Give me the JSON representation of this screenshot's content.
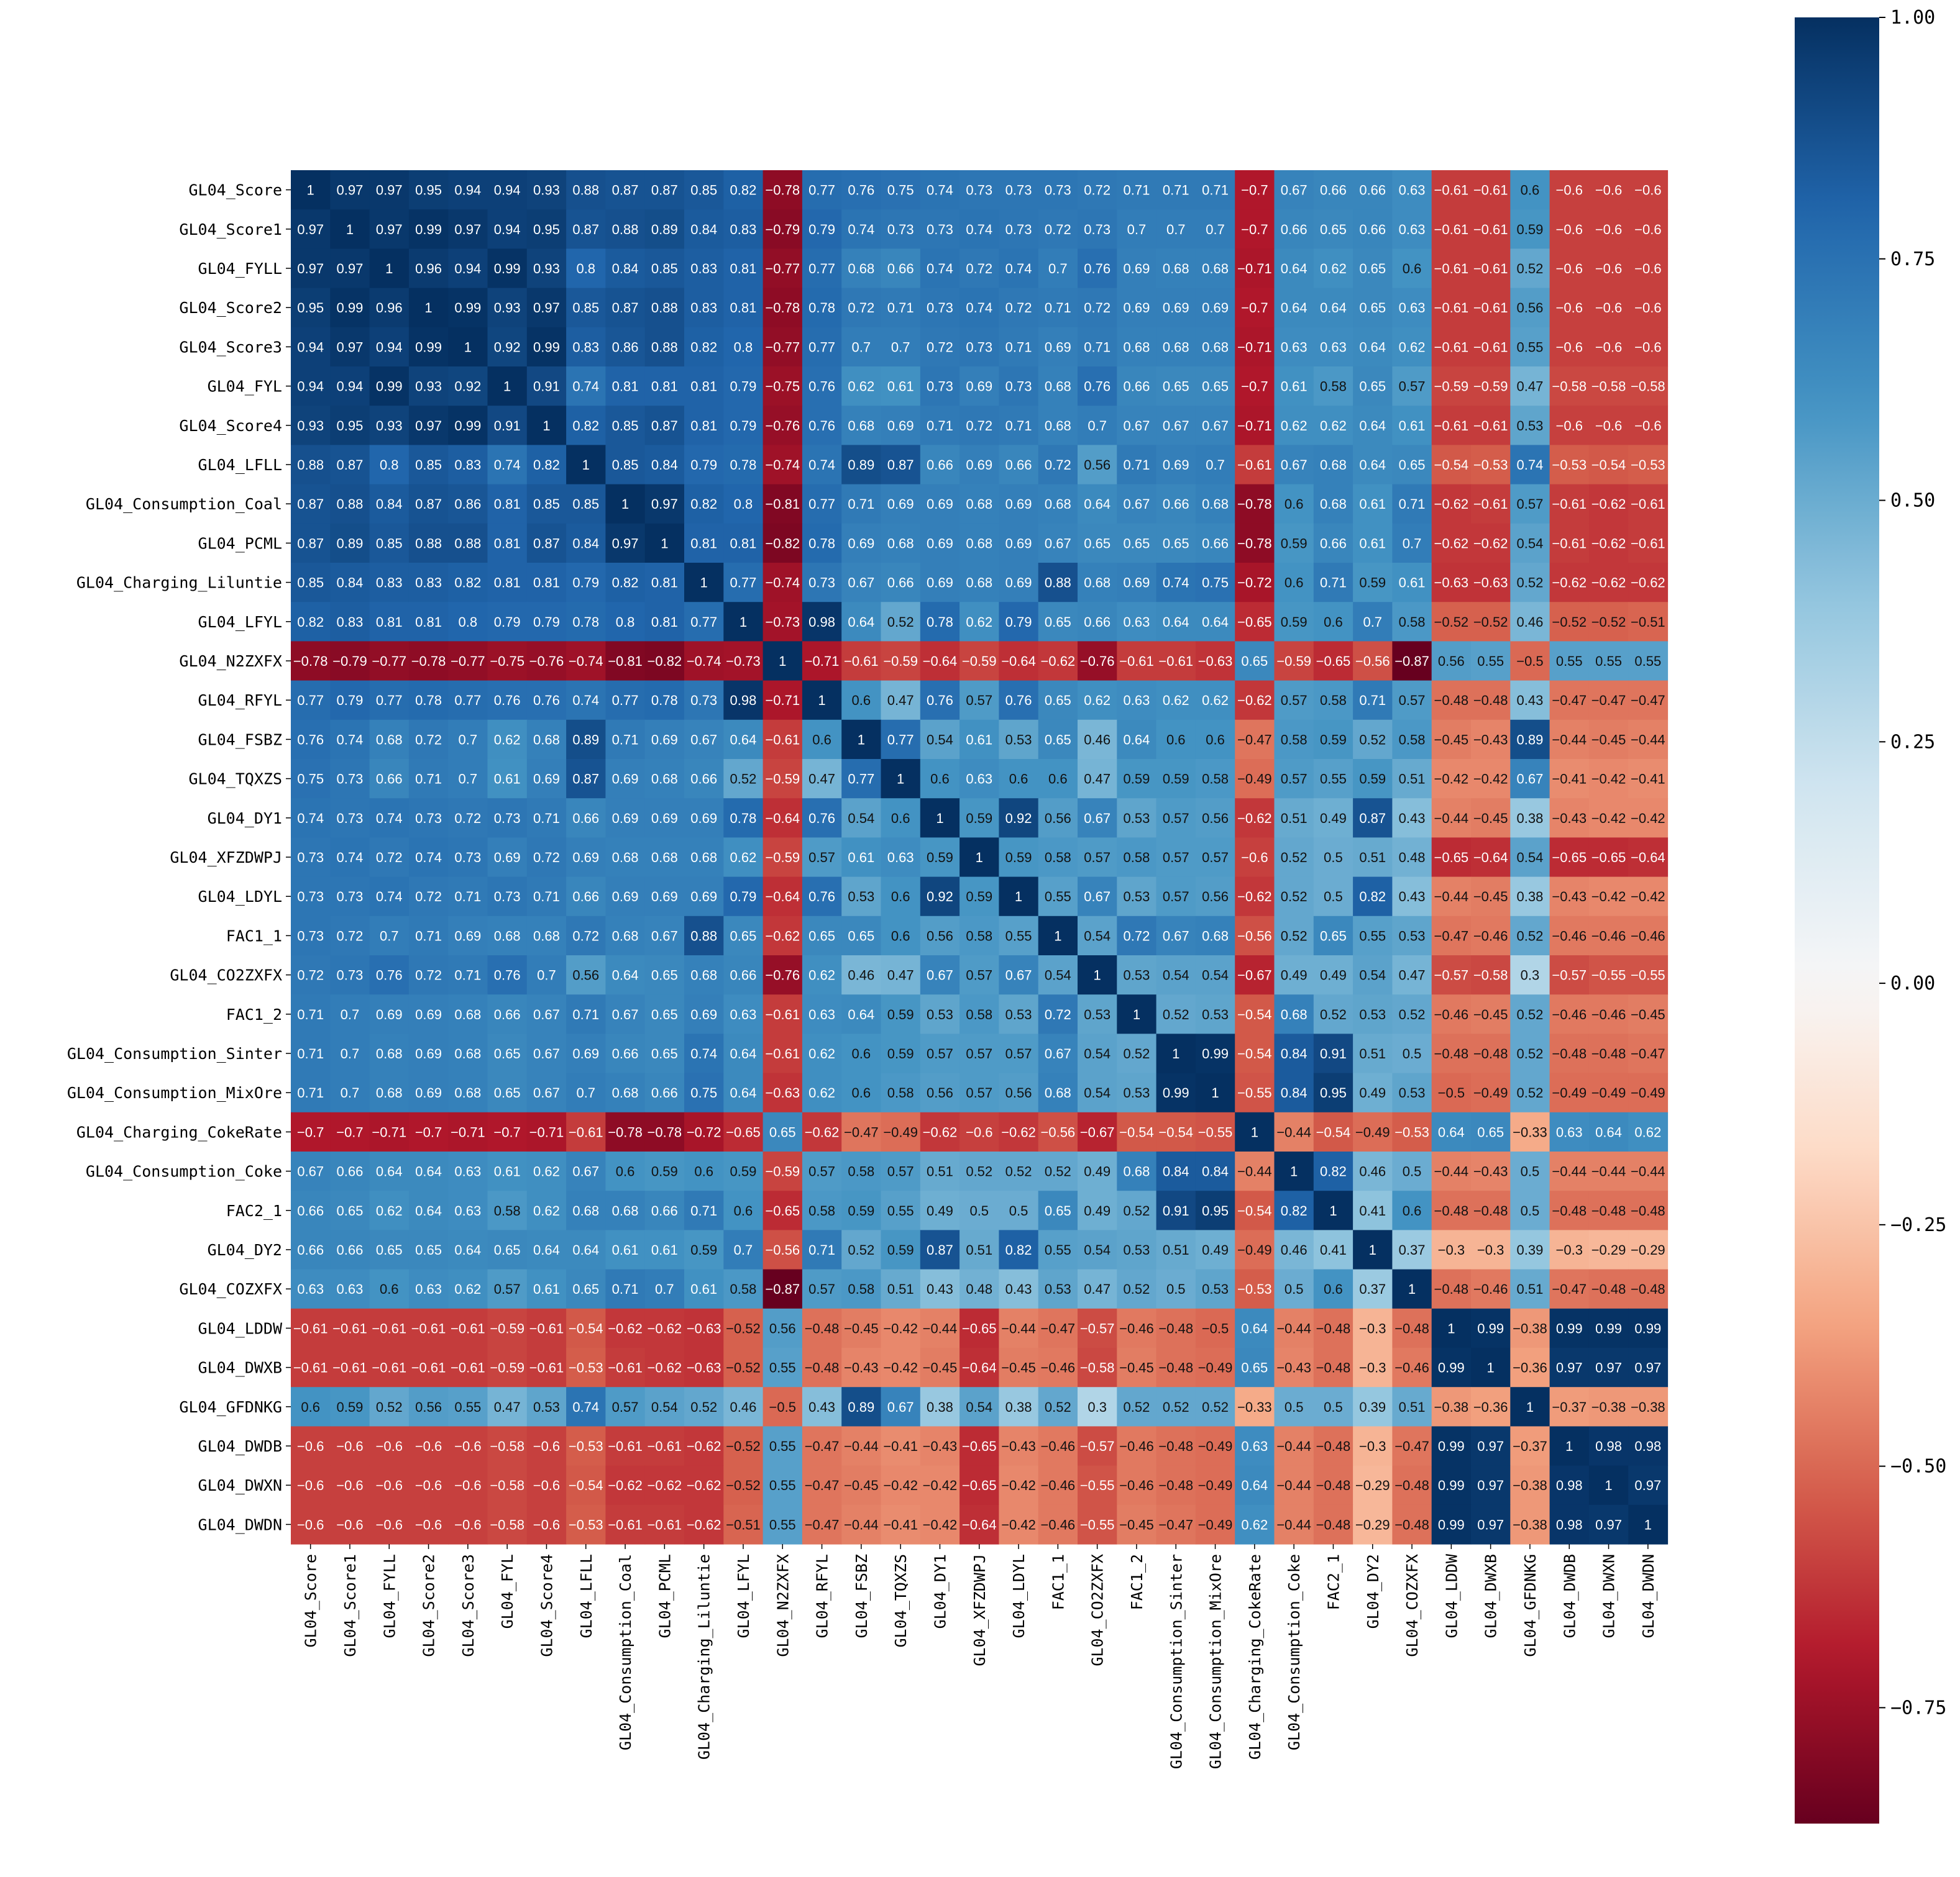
{
  "chart_data": {
    "type": "heatmap",
    "title": "",
    "xlabel": "",
    "ylabel": "",
    "variables": [
      "GL04_Score",
      "GL04_Score1",
      "GL04_FYLL",
      "GL04_Score2",
      "GL04_Score3",
      "GL04_FYL",
      "GL04_Score4",
      "GL04_LFLL",
      "GL04_Consumption_Coal",
      "GL04_PCML",
      "GL04_Charging_Liluntie",
      "GL04_LFYL",
      "GL04_N2ZXFX",
      "GL04_RFYL",
      "GL04_FSBZ",
      "GL04_TQXZS",
      "GL04_DY1",
      "GL04_XFZDWPJ",
      "GL04_LDYL",
      "FAC1_1",
      "GL04_CO2ZXFX",
      "FAC1_2",
      "GL04_Consumption_Sinter",
      "GL04_Consumption_MixOre",
      "GL04_Charging_CokeRate",
      "GL04_Consumption_Coke",
      "FAC2_1",
      "GL04_DY2",
      "GL04_COZXFX",
      "GL04_LDDW",
      "GL04_DWXB",
      "GL04_GFDNKG",
      "GL04_DWDB",
      "GL04_DWXN",
      "GL04_DWDN"
    ],
    "matrix": [
      [
        1,
        0.97,
        0.97,
        0.95,
        0.94,
        0.94,
        0.93,
        0.88,
        0.87,
        0.87,
        0.85,
        0.82,
        -0.78,
        0.77,
        0.76,
        0.75,
        0.74,
        0.73,
        0.73,
        0.73,
        0.72,
        0.71,
        0.71,
        0.71,
        -0.7,
        0.67,
        0.66,
        0.66,
        0.63,
        -0.61,
        -0.61,
        0.6,
        -0.6,
        -0.6,
        -0.6
      ],
      [
        0.97,
        1,
        0.97,
        0.99,
        0.97,
        0.94,
        0.95,
        0.87,
        0.88,
        0.89,
        0.84,
        0.83,
        -0.79,
        0.79,
        0.74,
        0.73,
        0.73,
        0.74,
        0.73,
        0.72,
        0.73,
        0.7,
        0.7,
        0.7,
        -0.7,
        0.66,
        0.65,
        0.66,
        0.63,
        -0.61,
        -0.61,
        0.59,
        -0.6,
        -0.6,
        -0.6
      ],
      [
        0.97,
        0.97,
        1,
        0.96,
        0.94,
        0.99,
        0.93,
        0.8,
        0.84,
        0.85,
        0.83,
        0.81,
        -0.77,
        0.77,
        0.68,
        0.66,
        0.74,
        0.72,
        0.74,
        0.7,
        0.76,
        0.69,
        0.68,
        0.68,
        -0.71,
        0.64,
        0.62,
        0.65,
        0.6,
        -0.61,
        -0.61,
        0.52,
        -0.6,
        -0.6,
        -0.6
      ],
      [
        0.95,
        0.99,
        0.96,
        1,
        0.99,
        0.93,
        0.97,
        0.85,
        0.87,
        0.88,
        0.83,
        0.81,
        -0.78,
        0.78,
        0.72,
        0.71,
        0.73,
        0.74,
        0.72,
        0.71,
        0.72,
        0.69,
        0.69,
        0.69,
        -0.7,
        0.64,
        0.64,
        0.65,
        0.63,
        -0.61,
        -0.61,
        0.56,
        -0.6,
        -0.6,
        -0.6
      ],
      [
        0.94,
        0.97,
        0.94,
        0.99,
        1,
        0.92,
        0.99,
        0.83,
        0.86,
        0.88,
        0.82,
        0.8,
        -0.77,
        0.77,
        0.7,
        0.7,
        0.72,
        0.73,
        0.71,
        0.69,
        0.71,
        0.68,
        0.68,
        0.68,
        -0.71,
        0.63,
        0.63,
        0.64,
        0.62,
        -0.61,
        -0.61,
        0.55,
        -0.6,
        -0.6,
        -0.6
      ],
      [
        0.94,
        0.94,
        0.99,
        0.93,
        0.92,
        1,
        0.91,
        0.74,
        0.81,
        0.81,
        0.81,
        0.79,
        -0.75,
        0.76,
        0.62,
        0.61,
        0.73,
        0.69,
        0.73,
        0.68,
        0.76,
        0.66,
        0.65,
        0.65,
        -0.7,
        0.61,
        0.58,
        0.65,
        0.57,
        -0.59,
        -0.59,
        0.47,
        -0.58,
        -0.58,
        -0.58
      ],
      [
        0.93,
        0.95,
        0.93,
        0.97,
        0.99,
        0.91,
        1,
        0.82,
        0.85,
        0.87,
        0.81,
        0.79,
        -0.76,
        0.76,
        0.68,
        0.69,
        0.71,
        0.72,
        0.71,
        0.68,
        0.7,
        0.67,
        0.67,
        0.67,
        -0.71,
        0.62,
        0.62,
        0.64,
        0.61,
        -0.61,
        -0.61,
        0.53,
        -0.6,
        -0.6,
        -0.6
      ],
      [
        0.88,
        0.87,
        0.8,
        0.85,
        0.83,
        0.74,
        0.82,
        1,
        0.85,
        0.84,
        0.79,
        0.78,
        -0.74,
        0.74,
        0.89,
        0.87,
        0.66,
        0.69,
        0.66,
        0.72,
        0.56,
        0.71,
        0.69,
        0.7,
        -0.61,
        0.67,
        0.68,
        0.64,
        0.65,
        -0.54,
        -0.53,
        0.74,
        -0.53,
        -0.54,
        -0.53
      ],
      [
        0.87,
        0.88,
        0.84,
        0.87,
        0.86,
        0.81,
        0.85,
        0.85,
        1,
        0.97,
        0.82,
        0.8,
        -0.81,
        0.77,
        0.71,
        0.69,
        0.69,
        0.68,
        0.69,
        0.68,
        0.64,
        0.67,
        0.66,
        0.68,
        -0.78,
        0.6,
        0.68,
        0.61,
        0.71,
        -0.62,
        -0.61,
        0.57,
        -0.61,
        -0.62,
        -0.61
      ],
      [
        0.87,
        0.89,
        0.85,
        0.88,
        0.88,
        0.81,
        0.87,
        0.84,
        0.97,
        1,
        0.81,
        0.81,
        -0.82,
        0.78,
        0.69,
        0.68,
        0.69,
        0.68,
        0.69,
        0.67,
        0.65,
        0.65,
        0.65,
        0.66,
        -0.78,
        0.59,
        0.66,
        0.61,
        0.7,
        -0.62,
        -0.62,
        0.54,
        -0.61,
        -0.62,
        -0.61
      ],
      [
        0.85,
        0.84,
        0.83,
        0.83,
        0.82,
        0.81,
        0.81,
        0.79,
        0.82,
        0.81,
        1,
        0.77,
        -0.74,
        0.73,
        0.67,
        0.66,
        0.69,
        0.68,
        0.69,
        0.88,
        0.68,
        0.69,
        0.74,
        0.75,
        -0.72,
        0.6,
        0.71,
        0.59,
        0.61,
        -0.63,
        -0.63,
        0.52,
        -0.62,
        -0.62,
        -0.62
      ],
      [
        0.82,
        0.83,
        0.81,
        0.81,
        0.8,
        0.79,
        0.79,
        0.78,
        0.8,
        0.81,
        0.77,
        1,
        -0.73,
        0.98,
        0.64,
        0.52,
        0.78,
        0.62,
        0.79,
        0.65,
        0.66,
        0.63,
        0.64,
        0.64,
        -0.65,
        0.59,
        0.6,
        0.7,
        0.58,
        -0.52,
        -0.52,
        0.46,
        -0.52,
        -0.52,
        -0.51
      ],
      [
        -0.78,
        -0.79,
        -0.77,
        -0.78,
        -0.77,
        -0.75,
        -0.76,
        -0.74,
        -0.81,
        -0.82,
        -0.74,
        -0.73,
        1,
        -0.71,
        -0.61,
        -0.59,
        -0.64,
        -0.59,
        -0.64,
        -0.62,
        -0.76,
        -0.61,
        -0.61,
        -0.63,
        0.65,
        -0.59,
        -0.65,
        -0.56,
        -0.87,
        0.56,
        0.55,
        -0.5,
        0.55,
        0.55,
        0.55
      ],
      [
        0.77,
        0.79,
        0.77,
        0.78,
        0.77,
        0.76,
        0.76,
        0.74,
        0.77,
        0.78,
        0.73,
        0.98,
        -0.71,
        1,
        0.6,
        0.47,
        0.76,
        0.57,
        0.76,
        0.65,
        0.62,
        0.63,
        0.62,
        0.62,
        -0.62,
        0.57,
        0.58,
        0.71,
        0.57,
        -0.48,
        -0.48,
        0.43,
        -0.47,
        -0.47,
        -0.47
      ],
      [
        0.76,
        0.74,
        0.68,
        0.72,
        0.7,
        0.62,
        0.68,
        0.89,
        0.71,
        0.69,
        0.67,
        0.64,
        -0.61,
        0.6,
        1,
        0.77,
        0.54,
        0.61,
        0.53,
        0.65,
        0.46,
        0.64,
        0.6,
        0.6,
        -0.47,
        0.58,
        0.59,
        0.52,
        0.58,
        -0.45,
        -0.43,
        0.89,
        -0.44,
        -0.45,
        -0.44
      ],
      [
        0.75,
        0.73,
        0.66,
        0.71,
        0.7,
        0.61,
        0.69,
        0.87,
        0.69,
        0.68,
        0.66,
        0.52,
        -0.59,
        0.47,
        0.77,
        1,
        0.6,
        0.63,
        0.6,
        0.6,
        0.47,
        0.59,
        0.59,
        0.58,
        -0.49,
        0.57,
        0.55,
        0.59,
        0.51,
        -0.42,
        -0.42,
        0.67,
        -0.41,
        -0.42,
        -0.41
      ],
      [
        0.74,
        0.73,
        0.74,
        0.73,
        0.72,
        0.73,
        0.71,
        0.66,
        0.69,
        0.69,
        0.69,
        0.78,
        -0.64,
        0.76,
        0.54,
        0.6,
        1,
        0.59,
        0.92,
        0.56,
        0.67,
        0.53,
        0.57,
        0.56,
        -0.62,
        0.51,
        0.49,
        0.87,
        0.43,
        -0.44,
        -0.45,
        0.38,
        -0.43,
        -0.42,
        -0.42
      ],
      [
        0.73,
        0.74,
        0.72,
        0.74,
        0.73,
        0.69,
        0.72,
        0.69,
        0.68,
        0.68,
        0.68,
        0.62,
        -0.59,
        0.57,
        0.61,
        0.63,
        0.59,
        1,
        0.59,
        0.58,
        0.57,
        0.58,
        0.57,
        0.57,
        -0.6,
        0.52,
        0.5,
        0.51,
        0.48,
        -0.65,
        -0.64,
        0.54,
        -0.65,
        -0.65,
        -0.64
      ],
      [
        0.73,
        0.73,
        0.74,
        0.72,
        0.71,
        0.73,
        0.71,
        0.66,
        0.69,
        0.69,
        0.69,
        0.79,
        -0.64,
        0.76,
        0.53,
        0.6,
        0.92,
        0.59,
        1,
        0.55,
        0.67,
        0.53,
        0.57,
        0.56,
        -0.62,
        0.52,
        0.5,
        0.82,
        0.43,
        -0.44,
        -0.45,
        0.38,
        -0.43,
        -0.42,
        -0.42
      ],
      [
        0.73,
        0.72,
        0.7,
        0.71,
        0.69,
        0.68,
        0.68,
        0.72,
        0.68,
        0.67,
        0.88,
        0.65,
        -0.62,
        0.65,
        0.65,
        0.6,
        0.56,
        0.58,
        0.55,
        1,
        0.54,
        0.72,
        0.67,
        0.68,
        -0.56,
        0.52,
        0.65,
        0.55,
        0.53,
        -0.47,
        -0.46,
        0.52,
        -0.46,
        -0.46,
        -0.46
      ],
      [
        0.72,
        0.73,
        0.76,
        0.72,
        0.71,
        0.76,
        0.7,
        0.56,
        0.64,
        0.65,
        0.68,
        0.66,
        -0.76,
        0.62,
        0.46,
        0.47,
        0.67,
        0.57,
        0.67,
        0.54,
        1,
        0.53,
        0.54,
        0.54,
        -0.67,
        0.49,
        0.49,
        0.54,
        0.47,
        -0.57,
        -0.58,
        0.3,
        -0.57,
        -0.55,
        -0.55
      ],
      [
        0.71,
        0.7,
        0.69,
        0.69,
        0.68,
        0.66,
        0.67,
        0.71,
        0.67,
        0.65,
        0.69,
        0.63,
        -0.61,
        0.63,
        0.64,
        0.59,
        0.53,
        0.58,
        0.53,
        0.72,
        0.53,
        1,
        0.52,
        0.53,
        -0.54,
        0.68,
        0.52,
        0.53,
        0.52,
        -0.46,
        -0.45,
        0.52,
        -0.46,
        -0.46,
        -0.45
      ],
      [
        0.71,
        0.7,
        0.68,
        0.69,
        0.68,
        0.65,
        0.67,
        0.69,
        0.66,
        0.65,
        0.74,
        0.64,
        -0.61,
        0.62,
        0.6,
        0.59,
        0.57,
        0.57,
        0.57,
        0.67,
        0.54,
        0.52,
        1,
        0.99,
        -0.54,
        0.84,
        0.91,
        0.51,
        0.5,
        -0.48,
        -0.48,
        0.52,
        -0.48,
        -0.48,
        -0.47
      ],
      [
        0.71,
        0.7,
        0.68,
        0.69,
        0.68,
        0.65,
        0.67,
        0.7,
        0.68,
        0.66,
        0.75,
        0.64,
        -0.63,
        0.62,
        0.6,
        0.58,
        0.56,
        0.57,
        0.56,
        0.68,
        0.54,
        0.53,
        0.99,
        1,
        -0.55,
        0.84,
        0.95,
        0.49,
        0.53,
        -0.5,
        -0.49,
        0.52,
        -0.49,
        -0.49,
        -0.49
      ],
      [
        -0.7,
        -0.7,
        -0.71,
        -0.7,
        -0.71,
        -0.7,
        -0.71,
        -0.61,
        -0.78,
        -0.78,
        -0.72,
        -0.65,
        0.65,
        -0.62,
        -0.47,
        -0.49,
        -0.62,
        -0.6,
        -0.62,
        -0.56,
        -0.67,
        -0.54,
        -0.54,
        -0.55,
        1,
        -0.44,
        -0.54,
        -0.49,
        -0.53,
        0.64,
        0.65,
        -0.33,
        0.63,
        0.64,
        0.62
      ],
      [
        0.67,
        0.66,
        0.64,
        0.64,
        0.63,
        0.61,
        0.62,
        0.67,
        0.6,
        0.59,
        0.6,
        0.59,
        -0.59,
        0.57,
        0.58,
        0.57,
        0.51,
        0.52,
        0.52,
        0.52,
        0.49,
        0.68,
        0.84,
        0.84,
        -0.44,
        1,
        0.82,
        0.46,
        0.5,
        -0.44,
        -0.43,
        0.5,
        -0.44,
        -0.44,
        -0.44
      ],
      [
        0.66,
        0.65,
        0.62,
        0.64,
        0.63,
        0.58,
        0.62,
        0.68,
        0.68,
        0.66,
        0.71,
        0.6,
        -0.65,
        0.58,
        0.59,
        0.55,
        0.49,
        0.5,
        0.5,
        0.65,
        0.49,
        0.52,
        0.91,
        0.95,
        -0.54,
        0.82,
        1,
        0.41,
        0.6,
        -0.48,
        -0.48,
        0.5,
        -0.48,
        -0.48,
        -0.48
      ],
      [
        0.66,
        0.66,
        0.65,
        0.65,
        0.64,
        0.65,
        0.64,
        0.64,
        0.61,
        0.61,
        0.59,
        0.7,
        -0.56,
        0.71,
        0.52,
        0.59,
        0.87,
        0.51,
        0.82,
        0.55,
        0.54,
        0.53,
        0.51,
        0.49,
        -0.49,
        0.46,
        0.41,
        1,
        0.37,
        -0.3,
        -0.3,
        0.39,
        -0.3,
        -0.29,
        -0.29
      ],
      [
        0.63,
        0.63,
        0.6,
        0.63,
        0.62,
        0.57,
        0.61,
        0.65,
        0.71,
        0.7,
        0.61,
        0.58,
        -0.87,
        0.57,
        0.58,
        0.51,
        0.43,
        0.48,
        0.43,
        0.53,
        0.47,
        0.52,
        0.5,
        0.53,
        -0.53,
        0.5,
        0.6,
        0.37,
        1,
        -0.48,
        -0.46,
        0.51,
        -0.47,
        -0.48,
        -0.48
      ],
      [
        -0.61,
        -0.61,
        -0.61,
        -0.61,
        -0.61,
        -0.59,
        -0.61,
        -0.54,
        -0.62,
        -0.62,
        -0.63,
        -0.52,
        0.56,
        -0.48,
        -0.45,
        -0.42,
        -0.44,
        -0.65,
        -0.44,
        -0.47,
        -0.57,
        -0.46,
        -0.48,
        -0.5,
        0.64,
        -0.44,
        -0.48,
        -0.3,
        -0.48,
        1,
        0.99,
        -0.38,
        0.99,
        0.99,
        0.99
      ],
      [
        -0.61,
        -0.61,
        -0.61,
        -0.61,
        -0.61,
        -0.59,
        -0.61,
        -0.53,
        -0.61,
        -0.62,
        -0.63,
        -0.52,
        0.55,
        -0.48,
        -0.43,
        -0.42,
        -0.45,
        -0.64,
        -0.45,
        -0.46,
        -0.58,
        -0.45,
        -0.48,
        -0.49,
        0.65,
        -0.43,
        -0.48,
        -0.3,
        -0.46,
        0.99,
        1,
        -0.36,
        0.97,
        0.97,
        0.97
      ],
      [
        0.6,
        0.59,
        0.52,
        0.56,
        0.55,
        0.47,
        0.53,
        0.74,
        0.57,
        0.54,
        0.52,
        0.46,
        -0.5,
        0.43,
        0.89,
        0.67,
        0.38,
        0.54,
        0.38,
        0.52,
        0.3,
        0.52,
        0.52,
        0.52,
        -0.33,
        0.5,
        0.5,
        0.39,
        0.51,
        -0.38,
        -0.36,
        1,
        -0.37,
        -0.38,
        -0.38
      ],
      [
        -0.6,
        -0.6,
        -0.6,
        -0.6,
        -0.6,
        -0.58,
        -0.6,
        -0.53,
        -0.61,
        -0.61,
        -0.62,
        -0.52,
        0.55,
        -0.47,
        -0.44,
        -0.41,
        -0.43,
        -0.65,
        -0.43,
        -0.46,
        -0.57,
        -0.46,
        -0.48,
        -0.49,
        0.63,
        -0.44,
        -0.48,
        -0.3,
        -0.47,
        0.99,
        0.97,
        -0.37,
        1,
        0.98,
        0.98
      ],
      [
        -0.6,
        -0.6,
        -0.6,
        -0.6,
        -0.6,
        -0.58,
        -0.6,
        -0.54,
        -0.62,
        -0.62,
        -0.62,
        -0.52,
        0.55,
        -0.47,
        -0.45,
        -0.42,
        -0.42,
        -0.65,
        -0.42,
        -0.46,
        -0.55,
        -0.46,
        -0.48,
        -0.49,
        0.64,
        -0.44,
        -0.48,
        -0.29,
        -0.48,
        0.99,
        0.97,
        -0.38,
        0.98,
        1,
        0.97
      ],
      [
        -0.6,
        -0.6,
        -0.6,
        -0.6,
        -0.6,
        -0.58,
        -0.6,
        -0.53,
        -0.61,
        -0.61,
        -0.62,
        -0.51,
        0.55,
        -0.47,
        -0.44,
        -0.41,
        -0.42,
        -0.64,
        -0.42,
        -0.46,
        -0.55,
        -0.45,
        -0.47,
        -0.49,
        0.62,
        -0.44,
        -0.48,
        -0.29,
        -0.48,
        0.99,
        0.97,
        -0.38,
        0.98,
        0.97,
        1
      ]
    ],
    "colorbar": {
      "colormap": "RdBu",
      "vmin": -0.87,
      "vmax": 1.0,
      "tick_values": [
        1.0,
        0.75,
        0.5,
        0.25,
        0.0,
        -0.25,
        -0.5,
        -0.75
      ],
      "ticks": [
        "1.00",
        "0.75",
        "0.50",
        "0.25",
        "0.00",
        "−0.25",
        "−0.50",
        "−0.75"
      ]
    },
    "annotations": true,
    "grid": false,
    "legend": "colorbar-right"
  }
}
